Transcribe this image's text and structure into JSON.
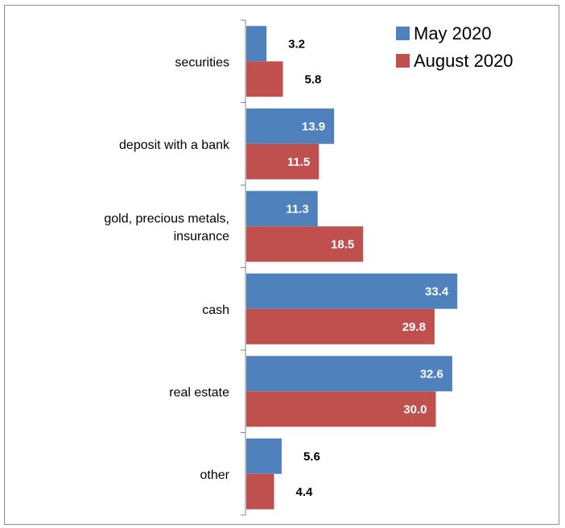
{
  "chart_data": {
    "type": "bar",
    "orientation": "horizontal",
    "categories": [
      "securities",
      "deposit with a bank",
      "gold, precious metals, insurance",
      "cash",
      "real estate",
      "other"
    ],
    "category_lines": [
      [
        "securities"
      ],
      [
        "deposit with a bank"
      ],
      [
        "gold, precious metals,",
        "insurance"
      ],
      [
        "cash"
      ],
      [
        "real estate"
      ],
      [
        "other"
      ]
    ],
    "series": [
      {
        "name": "May 2020",
        "color": "#4f81bd",
        "values": [
          3.2,
          13.9,
          11.3,
          33.4,
          32.6,
          5.6
        ],
        "labels": [
          "3.2",
          "13.9",
          "11.3",
          "33.4",
          "32.6",
          "5.6"
        ]
      },
      {
        "name": "August 2020",
        "color": "#c0504d",
        "values": [
          5.8,
          11.5,
          18.5,
          29.8,
          30.0,
          4.4
        ],
        "labels": [
          "5.8",
          "11.5",
          "18.5",
          "29.8",
          "30.0",
          "4.4"
        ]
      }
    ],
    "title": "",
    "xlabel": "",
    "ylabel": "",
    "xlim": [
      0,
      40
    ],
    "grid": false,
    "legend_position": "top-right",
    "data_labels": true
  }
}
